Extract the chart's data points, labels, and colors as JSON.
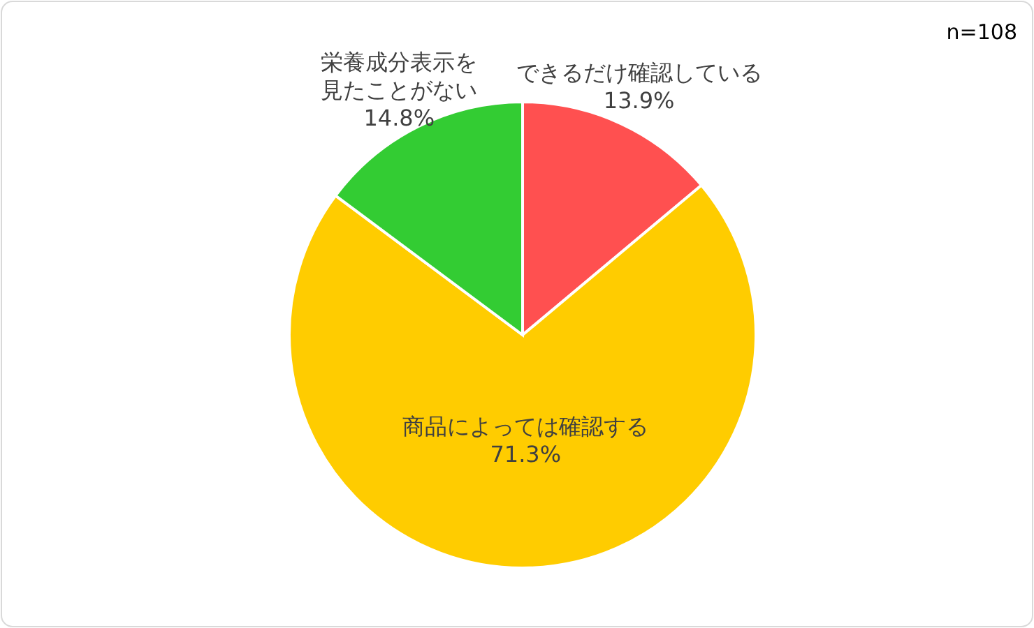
{
  "chart_data": {
    "type": "pie",
    "categories": [
      "できるだけ確認している",
      "商品によっては確認する",
      "栄養成分表示を見たことがない"
    ],
    "value_labels": [
      "13.9%",
      "71.3%",
      "14.8%"
    ],
    "values": [
      13.9,
      71.3,
      14.8
    ],
    "colors": [
      "#ff5050",
      "#ffcc00",
      "#33cc33"
    ],
    "annotations": [
      "n=108"
    ]
  }
}
